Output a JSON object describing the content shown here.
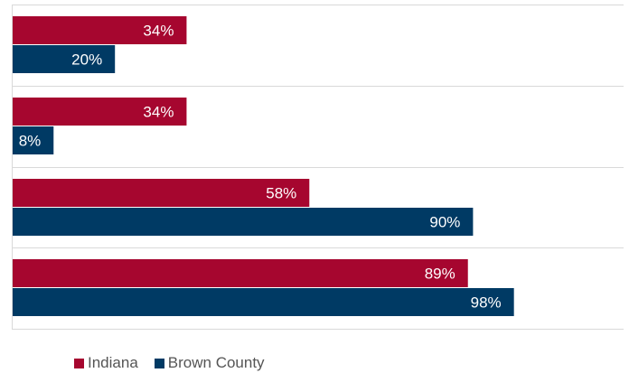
{
  "colors": {
    "indiana": "#a6062f",
    "brown_county": "#003a64",
    "grid": "#d9d9d9"
  },
  "chart_data": {
    "type": "bar",
    "orientation": "horizontal",
    "xlim": [
      0,
      100
    ],
    "value_format": "percent",
    "grid": true,
    "legend_position": "bottom-left",
    "categories": [
      "",
      "",
      "",
      ""
    ],
    "series": [
      {
        "name": "Indiana",
        "values": [
          34,
          34,
          58,
          89
        ]
      },
      {
        "name": "Brown County",
        "values": [
          20,
          8,
          90,
          98
        ]
      }
    ]
  },
  "legend": {
    "indiana": "Indiana",
    "brown_county": "Brown County"
  }
}
